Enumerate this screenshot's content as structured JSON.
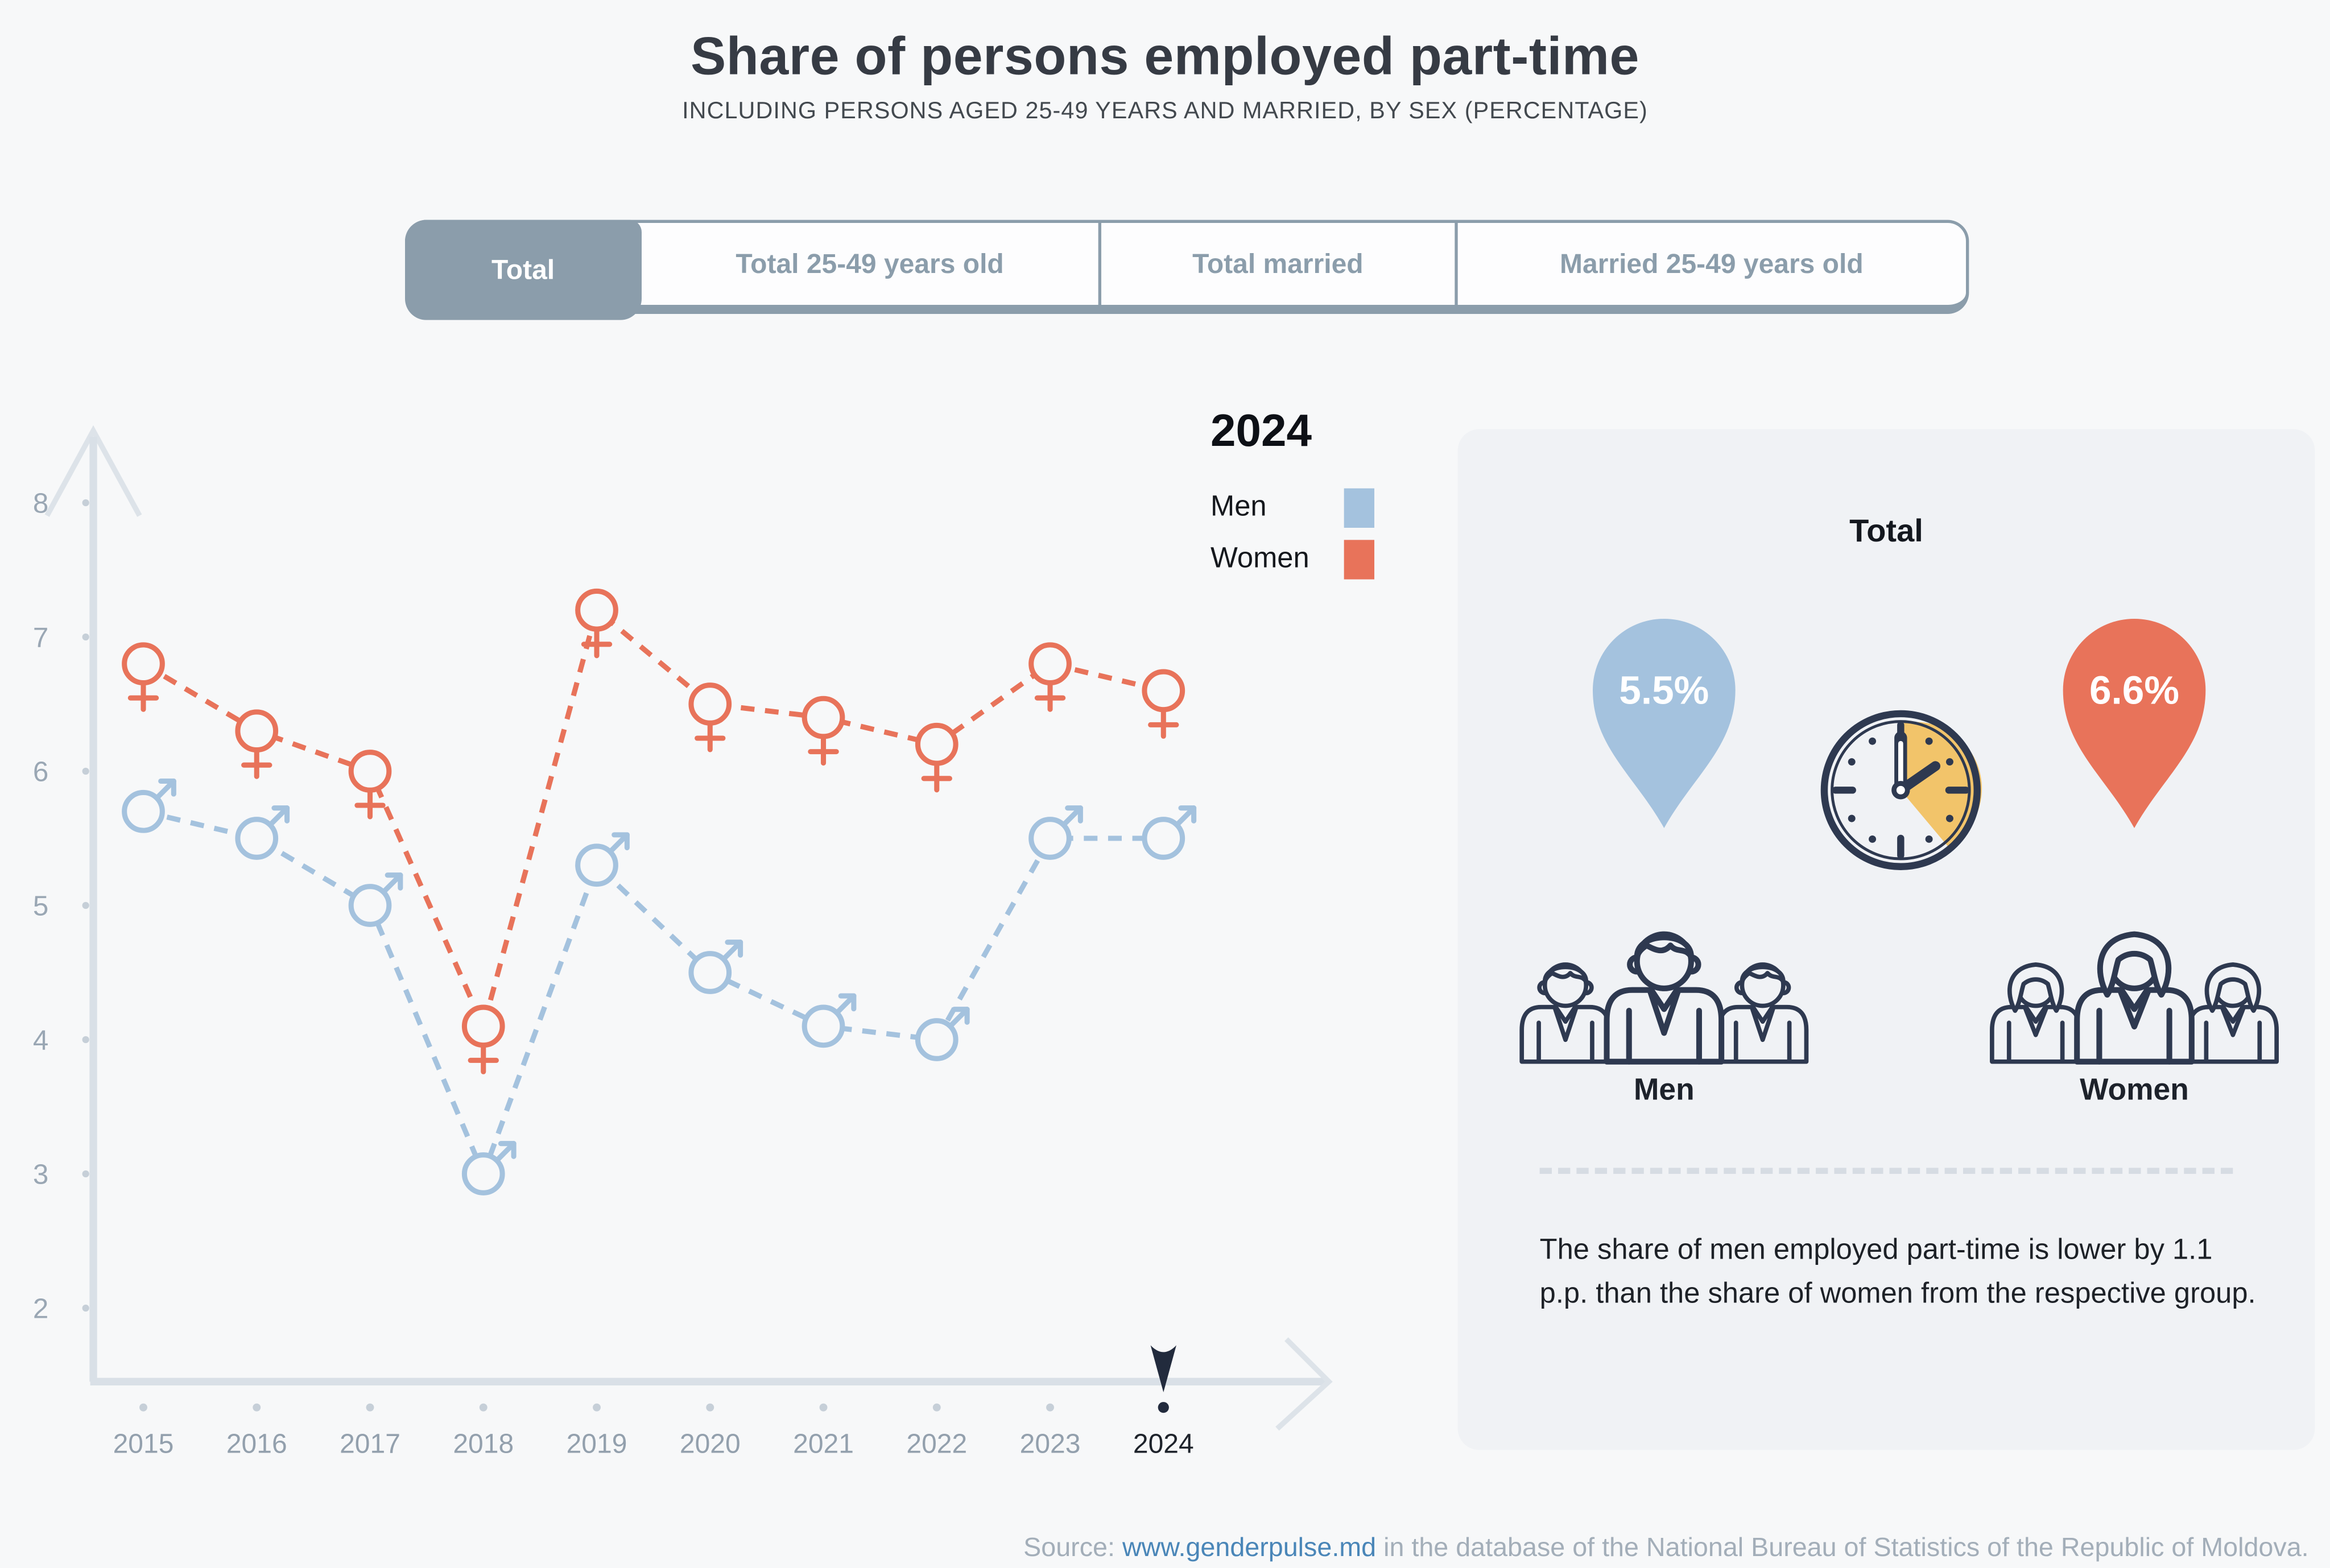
{
  "header": {
    "title": "Share of persons employed part-time",
    "subtitle": "INCLUDING PERSONS AGED 25-49 YEARS AND MARRIED, BY SEX (PERCENTAGE)"
  },
  "tabs": [
    {
      "label": "Total",
      "active": true
    },
    {
      "label": "Total 25-49 years old",
      "active": false
    },
    {
      "label": "Total married",
      "active": false
    },
    {
      "label": "Married 25-49 years old",
      "active": false
    }
  ],
  "legend": {
    "year": "2024",
    "entries": [
      {
        "label": "Men",
        "color": "#a4c2de"
      },
      {
        "label": "Women",
        "color": "#e8735a"
      }
    ]
  },
  "chart_data": {
    "type": "line",
    "x": [
      "2015",
      "2016",
      "2017",
      "2018",
      "2019",
      "2020",
      "2021",
      "2022",
      "2023",
      "2024"
    ],
    "series": [
      {
        "name": "Men",
        "color": "#a4c2de",
        "marker": "male-symbol",
        "values": [
          5.7,
          5.5,
          5.0,
          3.0,
          5.3,
          4.5,
          4.1,
          4.0,
          5.5,
          5.5
        ]
      },
      {
        "name": "Women",
        "color": "#e8735a",
        "marker": "female-symbol",
        "values": [
          6.8,
          6.3,
          6.0,
          4.1,
          7.2,
          6.5,
          6.4,
          6.2,
          6.8,
          6.6
        ]
      }
    ],
    "ylim": [
      2,
      8
    ],
    "yticks": [
      2,
      3,
      4,
      5,
      6,
      7,
      8
    ],
    "line_style": "dashed",
    "grid": false,
    "legend_position": "top-right",
    "highlighted_x": "2024"
  },
  "panel": {
    "title": "Total",
    "men_value": "5.5%",
    "women_value": "6.6%",
    "men_label": "Men",
    "women_label": "Women",
    "note": "The share of men employed part-time is lower by 1.1 p.p. than the share of women from the respective group."
  },
  "source": {
    "prefix": "Source: ",
    "link_text": "www.genderpulse.md",
    "suffix": " in the database of the National Bureau of Statistics of the Republic of Moldova."
  },
  "colors": {
    "men": "#a4c2de",
    "women": "#e8735a",
    "navy": "#2e3950",
    "clock_accent": "#f2c46a",
    "active_tab": "#8b9dab",
    "axis": "#d9e0e7",
    "link": "#4a86b8",
    "page_bg": "#f7f8f9",
    "panel_bg": "#f0f2f5"
  }
}
